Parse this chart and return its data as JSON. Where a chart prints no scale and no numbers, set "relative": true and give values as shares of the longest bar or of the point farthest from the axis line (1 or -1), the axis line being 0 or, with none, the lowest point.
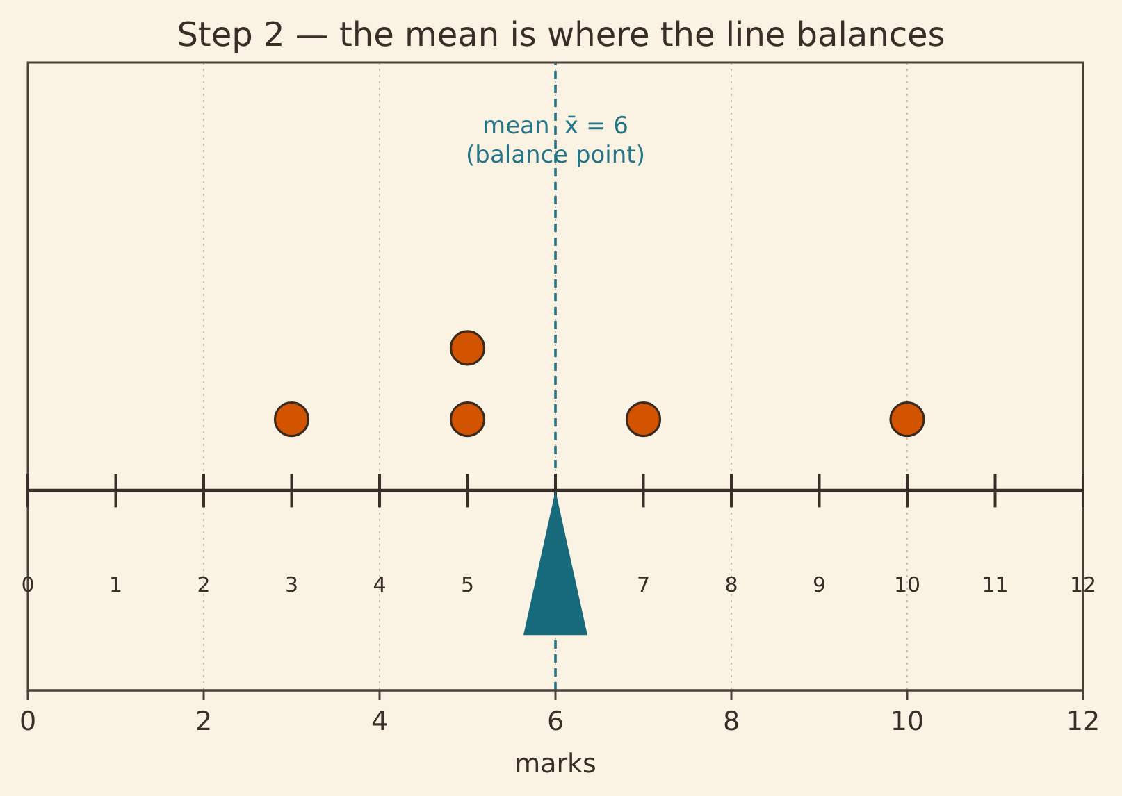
{
  "chart_data": {
    "type": "scatter",
    "title": "Step 2 — the mean is where the line balances",
    "xlabel": "marks",
    "x": [
      3,
      5,
      5,
      7,
      10
    ],
    "values": [
      0.5,
      0.5,
      1,
      0.5,
      0.5
    ],
    "relative": true,
    "color": "#d35400",
    "marker": "circle",
    "xlim": [
      0,
      12
    ],
    "xticks": [
      0,
      2,
      4,
      6,
      8,
      10,
      12
    ],
    "x2lim": [
      0,
      12
    ],
    "x2ticks": [
      0,
      1,
      2,
      3,
      4,
      5,
      {
        "value": 6,
        "label": null
      },
      7,
      8,
      9,
      10,
      11,
      12
    ],
    "grid": "x",
    "ref_lines": [
      {
        "axis": "x",
        "value": 6,
        "label": "mean  x̄ = 6\n(balance point)",
        "color": "#237587",
        "line_style": "dashed"
      }
    ]
  }
}
